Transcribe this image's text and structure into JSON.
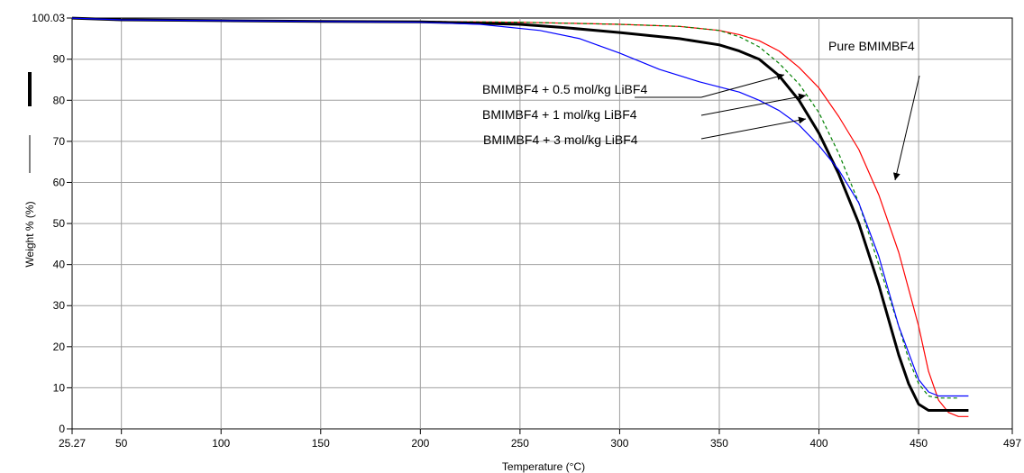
{
  "chart_data": {
    "type": "line",
    "xlabel": "Temperature (°C)",
    "ylabel": "Weight % (%)",
    "xlim": [
      25.27,
      497
    ],
    "ylim": [
      0,
      100.03
    ],
    "x_ticks": [
      25.27,
      50,
      100,
      150,
      200,
      250,
      300,
      350,
      400,
      450,
      497
    ],
    "x_tick_labels": [
      "25.27",
      "50",
      "100",
      "150",
      "200",
      "250",
      "300",
      "350",
      "400",
      "450",
      "497"
    ],
    "y_ticks": [
      0,
      10,
      20,
      30,
      40,
      50,
      60,
      70,
      80,
      90,
      100.03
    ],
    "y_tick_labels": [
      "0",
      "10",
      "20",
      "30",
      "40",
      "50",
      "60",
      "70",
      "80",
      "90",
      "100.03"
    ],
    "grid": true,
    "series": [
      {
        "color": "#ff0000",
        "style": "solid",
        "x": [
          25.27,
          50,
          100,
          150,
          200,
          250,
          300,
          330,
          350,
          360,
          370,
          380,
          390,
          400,
          410,
          420,
          430,
          440,
          450,
          455,
          460,
          465,
          470,
          475
        ],
        "y": [
          100,
          99.6,
          99.4,
          99.3,
          99.2,
          99,
          98.5,
          98.0,
          97,
          96,
          94.5,
          92,
          88,
          83,
          76,
          68,
          57,
          43,
          25,
          14,
          7,
          4,
          3,
          3
        ]
      },
      {
        "color": "#008000",
        "style": "dashed",
        "x": [
          25.27,
          50,
          100,
          150,
          200,
          250,
          300,
          330,
          350,
          360,
          370,
          380,
          390,
          400,
          410,
          420,
          430,
          440,
          445,
          450,
          455,
          460,
          465,
          470
        ],
        "y": [
          100,
          99.6,
          99.4,
          99.3,
          99.2,
          99,
          98.5,
          98,
          97,
          95.5,
          93,
          89,
          84,
          77,
          67,
          55,
          40,
          25,
          17,
          11,
          8,
          7.5,
          7.5,
          7.5
        ]
      },
      {
        "color": "#000000",
        "style": "solid-thick",
        "x": [
          25.27,
          50,
          100,
          150,
          200,
          250,
          270,
          300,
          330,
          350,
          360,
          370,
          380,
          390,
          400,
          410,
          420,
          430,
          440,
          445,
          450,
          455,
          460,
          470,
          475
        ],
        "y": [
          100,
          99.6,
          99.4,
          99.2,
          99.1,
          98.5,
          97.8,
          96.5,
          95,
          93.5,
          92,
          90,
          86,
          80,
          72,
          62,
          50,
          35,
          18,
          11,
          6,
          4.5,
          4.5,
          4.5,
          4.5
        ]
      },
      {
        "color": "#0000ff",
        "style": "solid",
        "x": [
          25.27,
          50,
          100,
          150,
          200,
          230,
          260,
          280,
          300,
          320,
          340,
          360,
          370,
          380,
          390,
          400,
          410,
          420,
          430,
          440,
          450,
          455,
          460,
          470,
          475
        ],
        "y": [
          100,
          99.6,
          99.4,
          99.2,
          99,
          98.5,
          97,
          95,
          91.5,
          87.5,
          84.5,
          82,
          80,
          77.5,
          74,
          69,
          63,
          55,
          42,
          25,
          12,
          9,
          8,
          8,
          8
        ]
      }
    ],
    "annotations": [
      {
        "text": "Pure BMIMBF4"
      },
      {
        "text": "BMIMBF4 + 0.5 mol/kg LiBF4"
      },
      {
        "text": "BMIMBF4 + 1 mol/kg LiBF4"
      },
      {
        "text": "BMIMBF4 + 3 mol/kg LiBF4"
      }
    ]
  }
}
